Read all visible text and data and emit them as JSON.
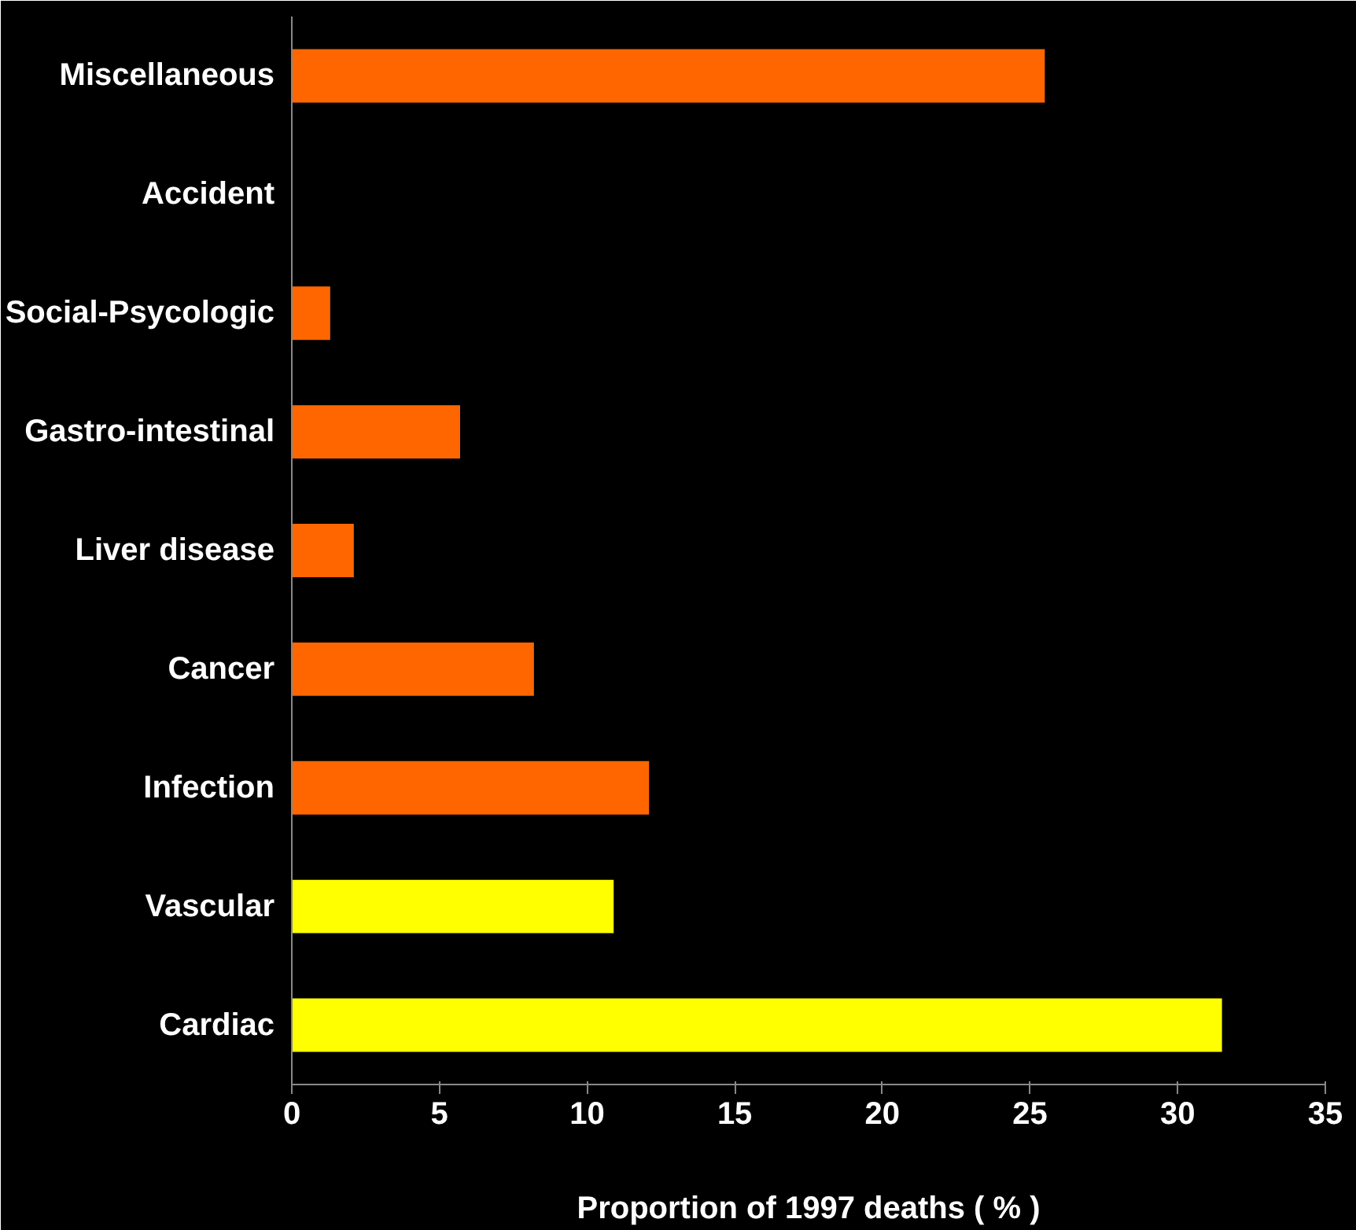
{
  "chart_data": {
    "type": "bar",
    "orientation": "horizontal",
    "xlabel": "Proportion of 1997 deaths ( % )",
    "categories": [
      "Miscellaneous",
      "Accident",
      "Social-Psycologic",
      "Gastro-intestinal",
      "Liver disease",
      "Cancer",
      "Infection",
      "Vascular",
      "Cardiac"
    ],
    "values": [
      25.5,
      0,
      1.3,
      5.7,
      2.1,
      8.2,
      12.1,
      10.9,
      31.5
    ],
    "colors": [
      "#ff6600",
      "#ff6600",
      "#ff6600",
      "#ff6600",
      "#ff6600",
      "#ff6600",
      "#ff6600",
      "#ffff00",
      "#ffff00"
    ],
    "xlim": [
      0,
      35
    ],
    "xticks": [
      0,
      5,
      10,
      15,
      20,
      25,
      30,
      35
    ]
  }
}
